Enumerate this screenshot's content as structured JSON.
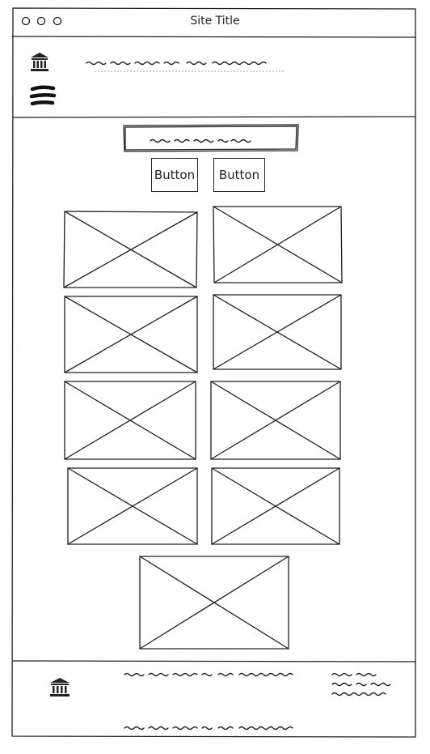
{
  "window": {
    "title": "Site Title",
    "controls": [
      "window-control-circle",
      "window-control-circle",
      "window-control-circle"
    ]
  },
  "header": {
    "logo_icon": "bank-icon",
    "menu_icon": "hamburger-menu-icon"
  },
  "main": {
    "buttons": [
      {
        "label": "Button"
      },
      {
        "label": "Button"
      }
    ],
    "image_placeholder_count": 9
  },
  "footer": {
    "logo_icon": "bank-icon"
  },
  "colors": {
    "stroke": "#1e1e1e",
    "background": "#ffffff"
  }
}
